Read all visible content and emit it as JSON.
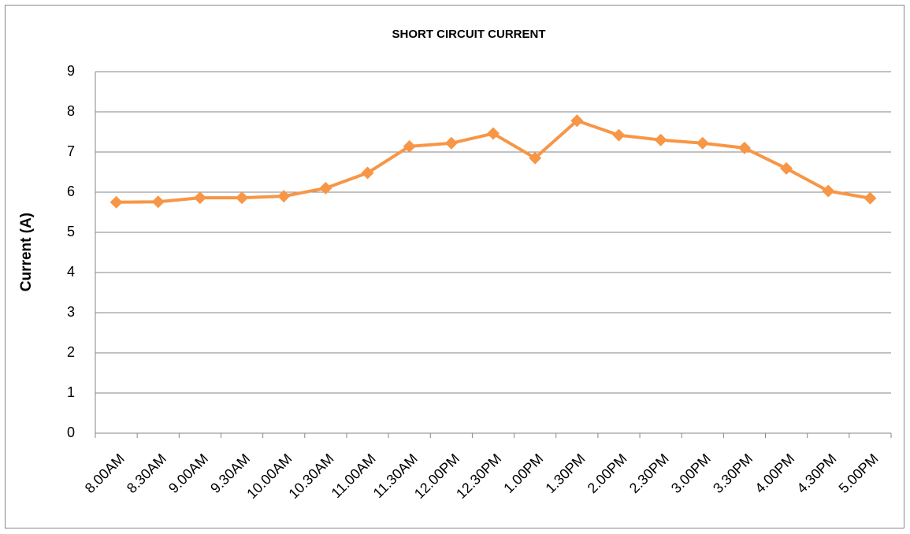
{
  "chart_data": {
    "type": "line",
    "title": "SHORT CIRCUIT CURRENT",
    "y_label": "Current (A)",
    "categories": [
      "8.00AM",
      "8.30AM",
      "9.00AM",
      "9.30AM",
      "10.00AM",
      "10.30AM",
      "11.00AM",
      "11.30AM",
      "12.00PM",
      "12.30PM",
      "1.00PM",
      "1.30PM",
      "2.00PM",
      "2.30PM",
      "3.00PM",
      "3.30PM",
      "4.00PM",
      "4.30PM",
      "5.00PM"
    ],
    "values": [
      5.75,
      5.76,
      5.86,
      5.86,
      5.9,
      6.1,
      6.48,
      7.14,
      7.22,
      7.46,
      6.85,
      7.78,
      7.42,
      7.3,
      7.22,
      7.1,
      6.59,
      6.03,
      5.85
    ],
    "color": "#f79646",
    "ylim": [
      0,
      9
    ],
    "yticks": [
      0,
      1,
      2,
      3,
      4,
      5,
      6,
      7,
      8,
      9
    ],
    "grid": true
  }
}
